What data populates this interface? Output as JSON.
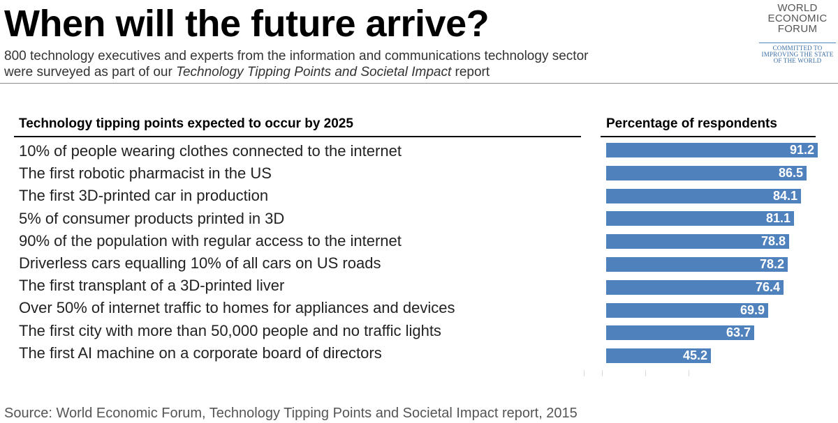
{
  "title": "When will the future arrive?",
  "subtitle": {
    "line1": "800 technology executives and experts from the information and communications technology sector",
    "line2_pre": "were surveyed as part of our ",
    "line2_italic": "Technology Tipping Points and Societal Impact",
    "line2_post": " report"
  },
  "logo": {
    "line1": "WORLD",
    "line2": "ECONOMIC",
    "line3": "FORUM",
    "tag1": "COMMITTED TO",
    "tag2": "IMPROVING THE STATE",
    "tag3": "OF THE WORLD"
  },
  "headers": {
    "left": "Technology tipping points expected to occur by 2025",
    "right": "Percentage of respondents"
  },
  "source": "Source: World Economic Forum, Technology Tipping Points and Societal Impact report, 2015",
  "colors": {
    "bar": "#4f81bd",
    "bar_text": "#ffffff"
  },
  "chart_data": {
    "type": "bar",
    "orientation": "horizontal",
    "title": "When will the future arrive?",
    "xlabel": "Percentage of respondents",
    "ylabel": "Technology tipping points expected to occur by 2025",
    "xlim": [
      0,
      100
    ],
    "categories": [
      "10% of people wearing clothes connected to the internet",
      "The first robotic pharmacist in the US",
      "The first 3D-printed car in production",
      "5% of consumer products printed in 3D",
      "90% of the population with regular access to the internet",
      "Driverless cars equalling 10% of all cars on US roads",
      "The first transplant of a 3D-printed liver",
      "Over 50% of internet traffic to homes for appliances and devices",
      "The first city with more than 50,000 people and no traffic lights",
      "The first AI machine on a corporate board of directors"
    ],
    "values": [
      91.2,
      86.5,
      84.1,
      81.1,
      78.8,
      78.2,
      76.4,
      69.9,
      63.7,
      45.2
    ],
    "value_labels": [
      "91.2",
      "86.5",
      "84.1",
      "81.1",
      "78.8",
      "78.2",
      "76.4",
      "69.9",
      "63.7",
      "45.2"
    ]
  }
}
